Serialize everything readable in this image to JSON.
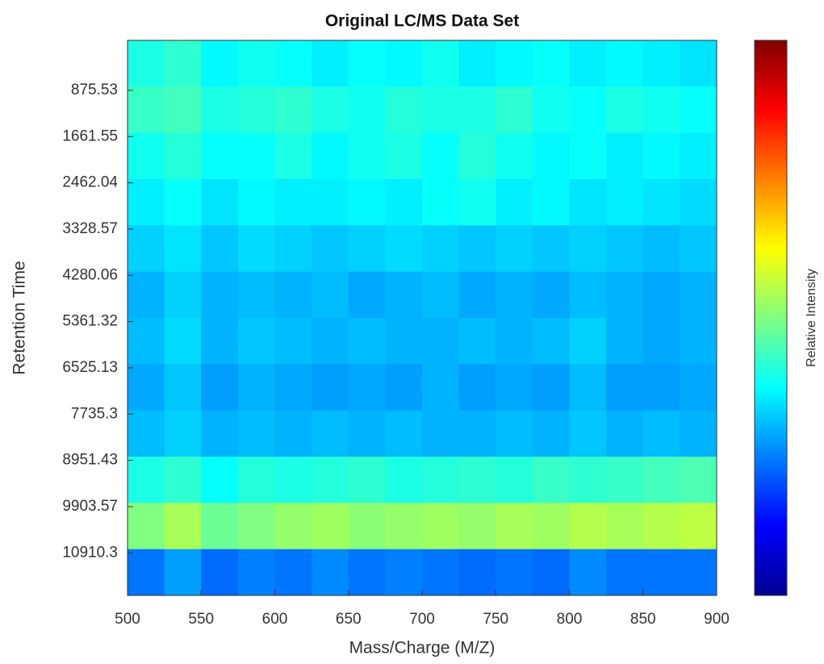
{
  "chart_data": {
    "type": "heatmap",
    "title": "Original LC/MS Data Set",
    "x_label": "Mass/Charge (M/Z)",
    "y_label": "Retention Time",
    "colorbar_label": "Relative Intensity",
    "colormap": "jet",
    "clim": [
      0,
      1
    ],
    "xlim": [
      500,
      900
    ],
    "xticks": [
      500,
      550,
      600,
      650,
      700,
      750,
      800,
      850,
      900
    ],
    "ylim": [
      -0.08,
      11.92
    ],
    "yticks": [
      {
        "value": 1,
        "label": "875.53"
      },
      {
        "value": 2,
        "label": "1661.55"
      },
      {
        "value": 3,
        "label": "2462.04"
      },
      {
        "value": 4,
        "label": "3328.57"
      },
      {
        "value": 5,
        "label": "4280.06"
      },
      {
        "value": 6,
        "label": "5361.32"
      },
      {
        "value": 7,
        "label": "6525.13"
      },
      {
        "value": 8,
        "label": "7735.3"
      },
      {
        "value": 9,
        "label": "8951.43"
      },
      {
        "value": 10,
        "label": "9903.57"
      },
      {
        "value": 11,
        "label": "10910.3"
      }
    ],
    "matrix": [
      [
        0.4,
        0.42,
        0.37,
        0.39,
        0.38,
        0.36,
        0.38,
        0.37,
        0.39,
        0.36,
        0.37,
        0.38,
        0.36,
        0.37,
        0.36,
        0.35
      ],
      [
        0.43,
        0.44,
        0.4,
        0.41,
        0.42,
        0.4,
        0.39,
        0.41,
        0.4,
        0.4,
        0.42,
        0.39,
        0.38,
        0.4,
        0.39,
        0.38
      ],
      [
        0.39,
        0.41,
        0.38,
        0.38,
        0.4,
        0.37,
        0.39,
        0.4,
        0.38,
        0.41,
        0.39,
        0.37,
        0.38,
        0.36,
        0.37,
        0.36
      ],
      [
        0.36,
        0.38,
        0.35,
        0.37,
        0.36,
        0.36,
        0.37,
        0.36,
        0.38,
        0.39,
        0.36,
        0.37,
        0.35,
        0.36,
        0.35,
        0.34
      ],
      [
        0.33,
        0.35,
        0.32,
        0.34,
        0.33,
        0.32,
        0.33,
        0.34,
        0.33,
        0.32,
        0.33,
        0.32,
        0.33,
        0.32,
        0.31,
        0.32
      ],
      [
        0.3,
        0.33,
        0.3,
        0.31,
        0.3,
        0.31,
        0.29,
        0.3,
        0.31,
        0.29,
        0.3,
        0.29,
        0.31,
        0.3,
        0.29,
        0.3
      ],
      [
        0.31,
        0.34,
        0.3,
        0.32,
        0.31,
        0.3,
        0.31,
        0.3,
        0.3,
        0.31,
        0.3,
        0.31,
        0.33,
        0.3,
        0.29,
        0.3
      ],
      [
        0.29,
        0.32,
        0.28,
        0.3,
        0.29,
        0.28,
        0.29,
        0.28,
        0.3,
        0.28,
        0.29,
        0.28,
        0.31,
        0.28,
        0.28,
        0.29
      ],
      [
        0.31,
        0.33,
        0.3,
        0.31,
        0.3,
        0.31,
        0.3,
        0.31,
        0.3,
        0.3,
        0.31,
        0.3,
        0.32,
        0.3,
        0.31,
        0.3
      ],
      [
        0.4,
        0.42,
        0.38,
        0.41,
        0.4,
        0.41,
        0.42,
        0.4,
        0.41,
        0.42,
        0.41,
        0.43,
        0.42,
        0.43,
        0.44,
        0.45
      ],
      [
        0.5,
        0.54,
        0.48,
        0.5,
        0.52,
        0.53,
        0.51,
        0.52,
        0.53,
        0.52,
        0.54,
        0.53,
        0.55,
        0.54,
        0.55,
        0.56
      ],
      [
        0.24,
        0.28,
        0.23,
        0.25,
        0.24,
        0.26,
        0.24,
        0.25,
        0.24,
        0.23,
        0.24,
        0.23,
        0.26,
        0.24,
        0.24,
        0.24
      ]
    ]
  }
}
